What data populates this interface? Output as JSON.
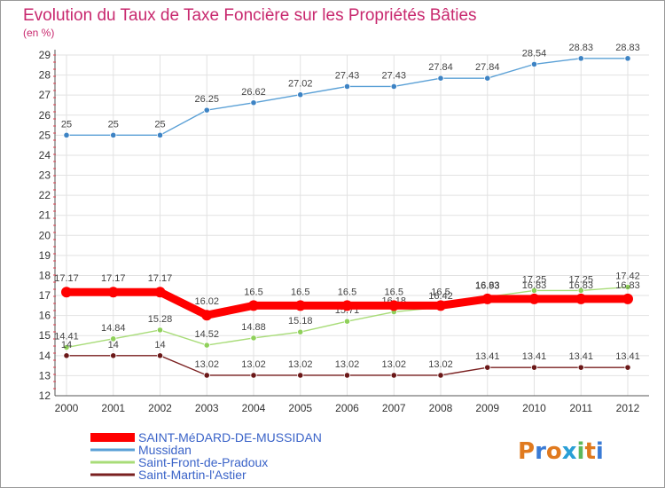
{
  "chart_data": {
    "type": "line",
    "title": "Evolution du Taux de Taxe Foncière sur les Propriétés Bâties",
    "subtitle": "(en %)",
    "xlabel": "",
    "ylabel": "",
    "x": [
      "2000",
      "2001",
      "2002",
      "2003",
      "2004",
      "2005",
      "2006",
      "2007",
      "2008",
      "2009",
      "2010",
      "2011",
      "2012"
    ],
    "ylim": [
      12,
      29
    ],
    "yticks": [
      12,
      13,
      14,
      15,
      16,
      17,
      18,
      19,
      20,
      21,
      22,
      23,
      24,
      25,
      26,
      27,
      28,
      29
    ],
    "grid": true,
    "legend_position": "bottom-left",
    "series": [
      {
        "name": "SAINT-MéDARD-DE-MUSSIDAN",
        "color": "#ff0000",
        "emphasis": true,
        "values": [
          17.17,
          17.17,
          17.17,
          16.02,
          16.5,
          16.5,
          16.5,
          16.5,
          16.5,
          16.83,
          16.83,
          16.83,
          16.83
        ],
        "labels": [
          "17.17",
          "17.17",
          "17.17",
          "16.02",
          "16.5",
          "16.5",
          "16.5",
          "16.5",
          "16.5",
          "16.83",
          "16.83",
          "16.83",
          "16.83"
        ]
      },
      {
        "name": "Mussidan",
        "color": "#5aa0d6",
        "point_color": "#3d83c4",
        "values": [
          25,
          25,
          25,
          26.25,
          26.62,
          27.02,
          27.43,
          27.43,
          27.84,
          27.84,
          28.54,
          28.83,
          28.83
        ],
        "labels": [
          "25",
          "25",
          "25",
          "26.25",
          "26.62",
          "27.02",
          "27.43",
          "27.43",
          "27.84",
          "27.84",
          "28.54",
          "28.83",
          "28.83"
        ]
      },
      {
        "name": "Saint-Front-de-Pradoux",
        "color": "#a8dc78",
        "point_color": "#8fd05a",
        "values": [
          14.41,
          14.84,
          15.28,
          14.52,
          14.88,
          15.18,
          15.71,
          16.18,
          16.42,
          16.93,
          17.25,
          17.25,
          17.42
        ],
        "labels": [
          "14.41",
          "14.84",
          "15.28",
          "14.52",
          "14.88",
          "15.18",
          "15.71",
          "16.18",
          "16.42",
          "16.93",
          "17.25",
          "17.25",
          "17.42"
        ]
      },
      {
        "name": "Saint-Martin-l'Astier",
        "color": "#7a2020",
        "point_color": "#6b1818",
        "values": [
          14,
          14,
          14,
          13.02,
          13.02,
          13.02,
          13.02,
          13.02,
          13.02,
          13.41,
          13.41,
          13.41,
          13.41
        ],
        "labels": [
          "14",
          "14",
          "14",
          "13.02",
          "13.02",
          "13.02",
          "13.02",
          "13.02",
          "13.02",
          "13.41",
          "13.41",
          "13.41",
          "13.41"
        ]
      }
    ]
  },
  "logo": {
    "text": "Proxiti"
  }
}
